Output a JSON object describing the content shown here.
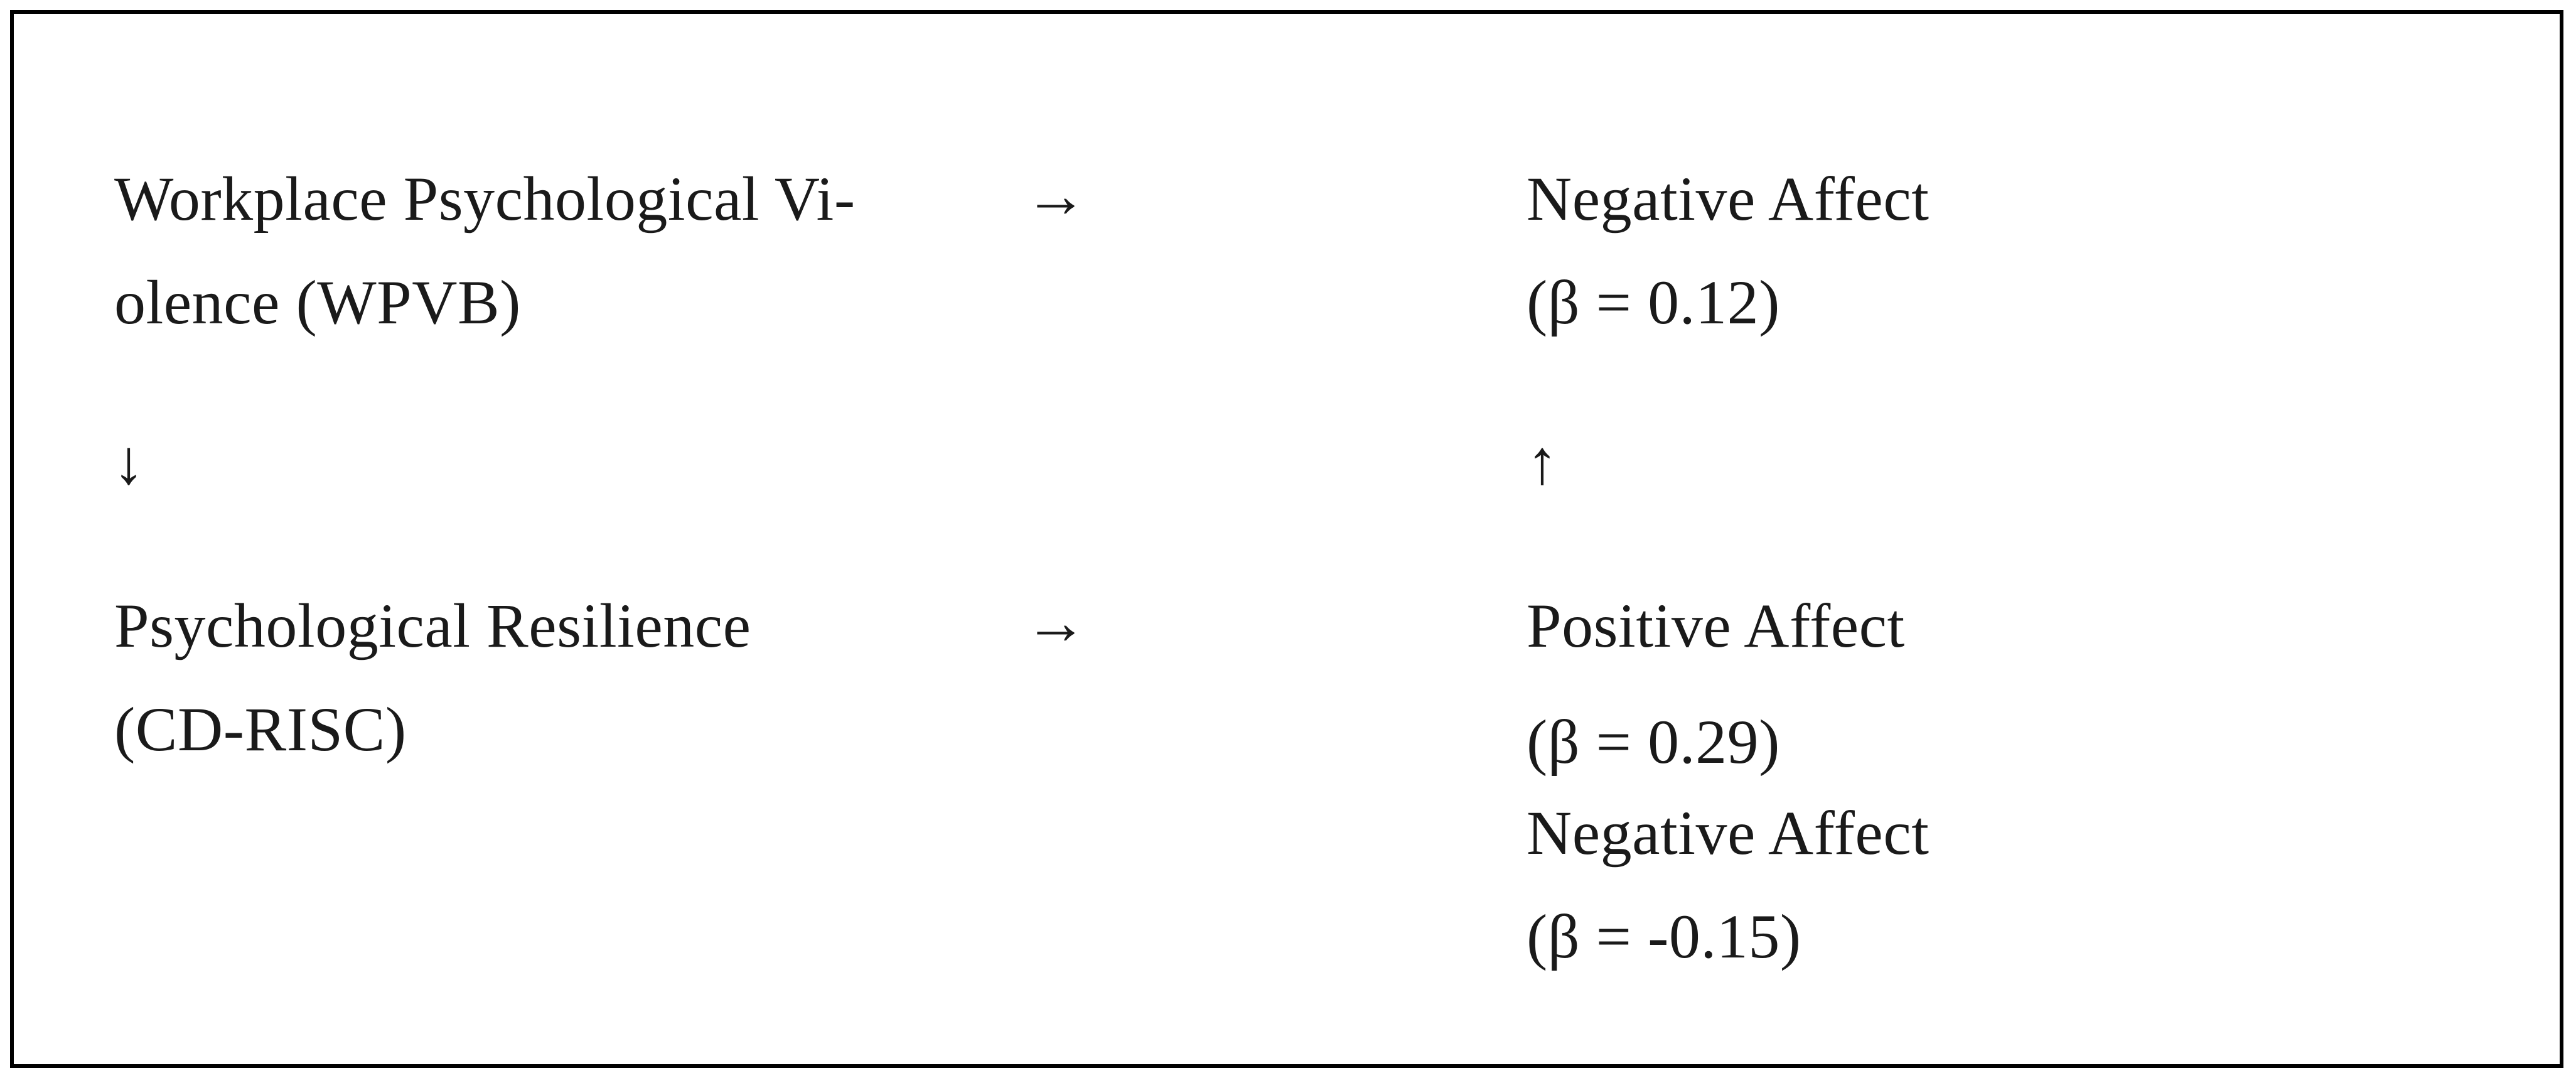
{
  "diagram": {
    "wpvb": {
      "line1": "Workplace Psychological Vi-",
      "line2": "olence (WPVB)"
    },
    "cd_risc": {
      "line1": "Psychological Resilience",
      "line2": "(CD-RISC)"
    },
    "negative_affect_top": {
      "label": "Negative Affect",
      "beta": "(β = 0.12)"
    },
    "positive_affect": {
      "label": "Positive Affect",
      "beta": "(β = 0.29)"
    },
    "negative_affect_bottom": {
      "label": "Negative Affect",
      "beta": "(β = -0.15)"
    },
    "arrows": {
      "top_right": "→",
      "bottom_right": "→",
      "left_down": "↓",
      "right_up": "↑"
    }
  }
}
